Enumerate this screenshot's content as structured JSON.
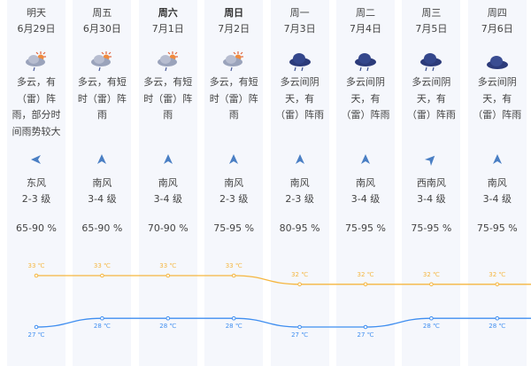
{
  "days": [
    {
      "day": "明天",
      "date": "6月29日",
      "bold": false,
      "icon": "cloudy-sun-rain-icon",
      "desc": [
        "多云，有",
        "（雷）阵",
        "雨，部分时",
        "间雨势较大"
      ],
      "wind_dir_icon": "west-arrow-icon",
      "wind_rot": -90,
      "wind": "东风",
      "level": "2-3 级",
      "humidity": "65-90 %",
      "high": "33 ℃",
      "low": "27 ℃"
    },
    {
      "day": "周五",
      "date": "6月30日",
      "bold": false,
      "icon": "cloudy-sun-rain-icon",
      "desc": [
        "多云，有短",
        "时（雷）阵",
        "雨"
      ],
      "wind_dir_icon": "north-arrow-icon",
      "wind_rot": 0,
      "wind": "南风",
      "level": "3-4 级",
      "humidity": "65-90 %",
      "high": "33 ℃",
      "low": "28 ℃"
    },
    {
      "day": "周六",
      "date": "7月1日",
      "bold": true,
      "icon": "cloudy-sun-rain-icon",
      "desc": [
        "多云，有短",
        "时（雷）阵",
        "雨"
      ],
      "wind_dir_icon": "north-arrow-icon",
      "wind_rot": 0,
      "wind": "南风",
      "level": "3-4 级",
      "humidity": "70-90 %",
      "high": "33 ℃",
      "low": "28 ℃"
    },
    {
      "day": "周日",
      "date": "7月2日",
      "bold": true,
      "icon": "cloudy-sun-rain-icon",
      "desc": [
        "多云，有短",
        "时（雷）阵",
        "雨"
      ],
      "wind_dir_icon": "north-arrow-icon",
      "wind_rot": 0,
      "wind": "南风",
      "level": "2-3 级",
      "humidity": "75-95 %",
      "high": "33 ℃",
      "low": "28 ℃"
    },
    {
      "day": "周一",
      "date": "7月3日",
      "bold": false,
      "icon": "rain-cloud-icon",
      "desc": [
        "多云间阴",
        "天，有",
        "（雷）阵雨"
      ],
      "wind_dir_icon": "north-arrow-icon",
      "wind_rot": 0,
      "wind": "南风",
      "level": "2-3 级",
      "humidity": "80-95 %",
      "high": "32 ℃",
      "low": "27 ℃"
    },
    {
      "day": "周二",
      "date": "7月4日",
      "bold": false,
      "icon": "rain-cloud-icon",
      "desc": [
        "多云间阴",
        "天，有",
        "（雷）阵雨"
      ],
      "wind_dir_icon": "north-arrow-icon",
      "wind_rot": 0,
      "wind": "南风",
      "level": "3-4 级",
      "humidity": "75-95 %",
      "high": "32 ℃",
      "low": "27 ℃"
    },
    {
      "day": "周三",
      "date": "7月5日",
      "bold": false,
      "icon": "rain-cloud-icon",
      "desc": [
        "多云间阴",
        "天，有",
        "（雷）阵雨"
      ],
      "wind_dir_icon": "northeast-arrow-icon",
      "wind_rot": 45,
      "wind": "西南风",
      "level": "3-4 级",
      "humidity": "75-95 %",
      "high": "32 ℃",
      "low": "28 ℃"
    },
    {
      "day": "周四",
      "date": "7月6日",
      "bold": false,
      "icon": "cloud-icon",
      "desc": [
        "多云间阴",
        "天，有",
        "（雷）阵雨"
      ],
      "wind_dir_icon": "north-arrow-icon",
      "wind_rot": 0,
      "wind": "南风",
      "level": "3-4 级",
      "humidity": "75-95 %",
      "high": "32 ℃",
      "low": "28 ℃"
    }
  ],
  "high_values": [
    33,
    33,
    33,
    33,
    32,
    32,
    32,
    32
  ],
  "low_values": [
    27,
    28,
    28,
    28,
    27,
    27,
    28,
    28
  ],
  "colors": {
    "high": "#f5b63f",
    "low": "#3f8ef0",
    "panel": "#f5f7fc",
    "arrow": "#4a7fc4"
  }
}
